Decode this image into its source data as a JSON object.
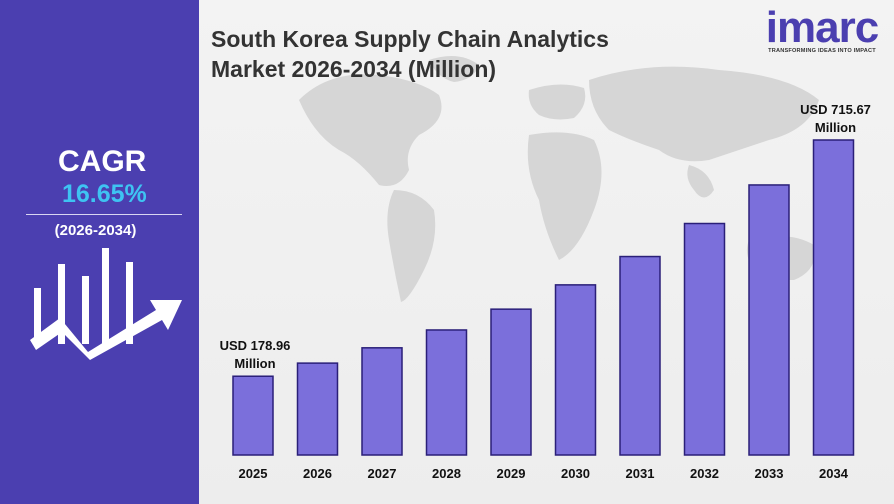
{
  "left_panel": {
    "cagr_label": "CAGR",
    "cagr_value": "16.65%",
    "cagr_period": "(2026-2034)"
  },
  "logo": {
    "word": "imarc",
    "tagline": "TRANSFORMING IDEAS INTO IMPACT"
  },
  "colors": {
    "panel": "#4b3fb0",
    "accent": "#3ec3f2",
    "bar_fill": "#7b6fdb",
    "bar_stroke": "#2a1f78"
  },
  "chart_data": {
    "type": "bar",
    "title": "South Korea Supply Chain Analytics Market 2026-2034 (Million)",
    "categories": [
      "2025",
      "2026",
      "2027",
      "2028",
      "2029",
      "2030",
      "2031",
      "2032",
      "2033",
      "2034"
    ],
    "values": [
      178.96,
      208.76,
      243.52,
      284.06,
      331.36,
      386.53,
      450.89,
      525.96,
      613.53,
      715.67
    ],
    "annotations": [
      {
        "category": "2025",
        "text": [
          "USD 178.96",
          "Million"
        ]
      },
      {
        "category": "2034",
        "text": [
          "USD 715.67",
          "Million"
        ]
      }
    ],
    "ylim": [
      0,
      715.67
    ],
    "grid": false,
    "legend": "none"
  }
}
